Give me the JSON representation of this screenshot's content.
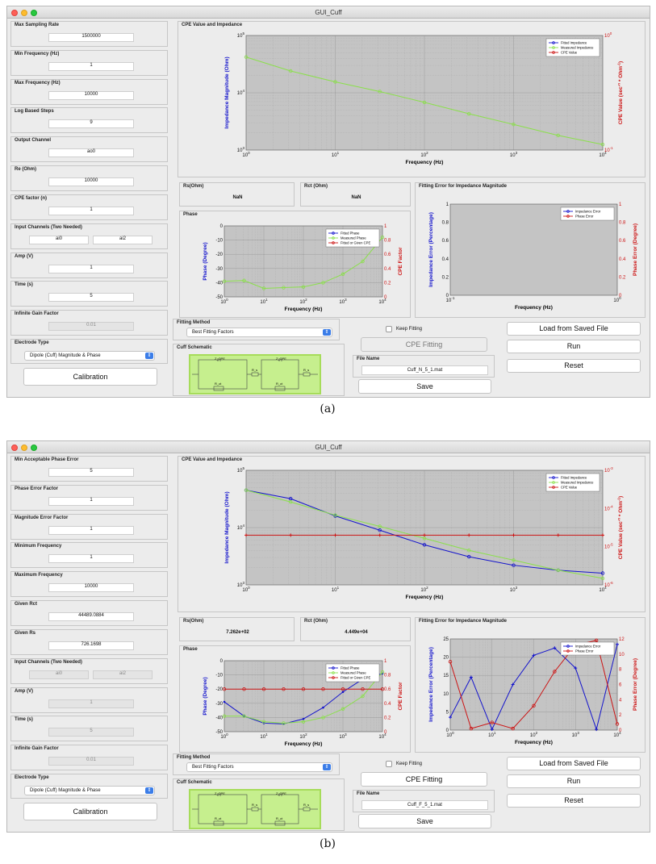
{
  "colors": {
    "blue": "#1414cc",
    "green": "#8be04b",
    "red": "#cc1414",
    "plot_bg": "#c4c4c4",
    "button_blue": "#3b7de8",
    "schematic_bg": "#c6ef8e"
  },
  "window_title": "GUI_Cuff",
  "captions": [
    "(a)",
    "(b)"
  ],
  "screens": [
    {
      "left_fields": [
        {
          "label": "Max Sampling Rate",
          "value": "1500000"
        },
        {
          "label": "Min Frequency (Hz)",
          "value": "1"
        },
        {
          "label": "Max Frequency (Hz)",
          "value": "10000"
        },
        {
          "label": "Log Based Steps",
          "value": "9"
        },
        {
          "label": "Output Channel",
          "value": "ao0"
        },
        {
          "label": "Re (Ohm)",
          "value": "10000"
        },
        {
          "label": "CPE factor (n)",
          "value": "1"
        }
      ],
      "input_channels": {
        "label": "Input Channels (Two Needed)",
        "ch1": "ai0",
        "ch2": "ai2",
        "disabled": false
      },
      "amp": {
        "label": "Amp (V)",
        "value": "1",
        "disabled": false
      },
      "time": {
        "label": "Time (s)",
        "value": "5",
        "disabled": false
      },
      "infinite_gain": {
        "label": "Infinite Gain Factor",
        "value": "0.01"
      },
      "electrode_type": {
        "label": "Electrode Type",
        "value": "Dipole (Cuff) Magnitude & Phase"
      },
      "calibration_label": "Calibration",
      "cpe_panel_title": "CPE Value and Impedance",
      "rs": {
        "label": "Rs(Ohm)",
        "value": "NaN"
      },
      "rct": {
        "label": "Rct (Ohm)",
        "value": "NaN"
      },
      "phase_panel_title": "Phase",
      "error_panel_title": "Fitting Error for Impedance Magnitude",
      "fitting_method": {
        "label": "Fitting Method",
        "value": "Best Fitting Factors"
      },
      "keep_fitting_label": "Keep Fitting",
      "cpe_fitting_label": "CPE Fitting",
      "cpe_fitting_enabled": false,
      "cuff_schematic_label": "Cuff Schematic",
      "schematic": {
        "cpe1": "Z_CPE",
        "rs1": "R_s",
        "rct1": "R_ct",
        "cpe2": "Z_CPE",
        "rs2": "R_s",
        "rct2": "R_ct"
      },
      "file_name": {
        "label": "File Name",
        "value": "Cuff_N_5_1.mat"
      },
      "load_label": "Load from Saved File",
      "run_label": "Run",
      "reset_label": "Reset",
      "save_label": "Save"
    },
    {
      "left_fields": [
        {
          "label": "Min Acceptable Phase Error",
          "value": "5"
        },
        {
          "label": "Phase Error Factor",
          "value": "1"
        },
        {
          "label": "Magnitude Error Factor",
          "value": "1"
        },
        {
          "label": "Minimum Frequency",
          "value": "1"
        },
        {
          "label": "Maximum Frequency",
          "value": "10000"
        },
        {
          "label": "Given Rct",
          "value": "44489.0884"
        },
        {
          "label": "Given Rs",
          "value": "726.1698"
        }
      ],
      "input_channels": {
        "label": "Input Channels (Two Needed)",
        "ch1": "ai0",
        "ch2": "ai2",
        "disabled": true
      },
      "amp": {
        "label": "Amp (V)",
        "value": "1",
        "disabled": true
      },
      "time": {
        "label": "Time (s)",
        "value": "5",
        "disabled": true
      },
      "infinite_gain": {
        "label": "Infinite Gain Factor",
        "value": "0.01"
      },
      "electrode_type": {
        "label": "Electrode Type",
        "value": "Dipole (Cuff) Magnitude & Phase"
      },
      "calibration_label": "Calibration",
      "cpe_panel_title": "CPE Value and Impedance",
      "rs": {
        "label": "Rs(Ohm)",
        "value": "7.262e+02"
      },
      "rct": {
        "label": "Rct (Ohm)",
        "value": "4.449e+04"
      },
      "phase_panel_title": "Phase",
      "error_panel_title": "Fitting Error for Impedance Magnitude",
      "fitting_method": {
        "label": "Fitting Method",
        "value": "Best Fitting Factors"
      },
      "keep_fitting_label": "Keep Fitting",
      "cpe_fitting_label": "CPE Fitting",
      "cpe_fitting_enabled": true,
      "cuff_schematic_label": "Cuff Schematic",
      "schematic": {
        "cpe1": "Z_CPE",
        "rs1": "R_s",
        "rct1": "R_ct",
        "cpe2": "Z_CPE",
        "rs2": "R_s",
        "rct2": "R_ct"
      },
      "file_name": {
        "label": "File Name",
        "value": "Cuff_F_5_1.mat"
      },
      "load_label": "Load from Saved File",
      "run_label": "Run",
      "reset_label": "Reset",
      "save_label": "Save"
    }
  ],
  "chart_data": [
    {
      "id": "a-impedance",
      "type": "line",
      "xlabel": "Frequency (Hz)",
      "ylabel": "Impedance Magnitude (Ohm)",
      "y2label": "CPE Value (sec^-n * Ohm^-1)",
      "xscale": "log",
      "yscale": "log",
      "xlim": [
        1,
        10000
      ],
      "ylim": [
        1000,
        100000
      ],
      "y2lim": [
        0.1,
        1
      ],
      "xticks": [
        "10^0",
        "10^1",
        "10^2",
        "10^3",
        "10^4"
      ],
      "yticks": [
        "10^3",
        "10^4",
        "10^5"
      ],
      "y2ticks": [
        "10^-1",
        "10^0"
      ],
      "legend": [
        "Fitted Impedance",
        "Measured Impedance",
        "CPE Value"
      ],
      "legend_position": "top-right",
      "grid": true,
      "series": [
        {
          "name": "Measured Impedance",
          "axis": "y",
          "x": [
            1,
            3.16,
            10,
            31.6,
            100,
            316,
            1000,
            3162,
            10000
          ],
          "y": [
            42000,
            24000,
            15500,
            10500,
            6800,
            4300,
            2800,
            1800,
            1250
          ]
        }
      ]
    },
    {
      "id": "a-phase",
      "type": "line",
      "xlabel": "Frequency (Hz)",
      "ylabel": "Phase (Degree)",
      "y2label": "CPE Factor",
      "xscale": "log",
      "yscale": "linear",
      "xlim": [
        1,
        10000
      ],
      "ylim": [
        -50,
        0
      ],
      "y2lim": [
        0,
        1
      ],
      "xticks": [
        "10^0",
        "10^1",
        "10^2",
        "10^3",
        "10^4"
      ],
      "yticks": [
        "0",
        "-10",
        "-20",
        "-30",
        "-40",
        "-50"
      ],
      "y2ticks": [
        "0",
        "0.2",
        "0.4",
        "0.6",
        "0.8",
        "1"
      ],
      "legend": [
        "Fitted Phase",
        "Measured Phase",
        "Fitted or Given CPE"
      ],
      "legend_position": "top-right",
      "grid": true,
      "series": [
        {
          "name": "Measured Phase",
          "axis": "y",
          "x": [
            1,
            3.16,
            10,
            31.6,
            100,
            316,
            1000,
            3162,
            10000
          ],
          "y": [
            -39,
            -38.5,
            -44,
            -43.5,
            -43,
            -40,
            -34,
            -25,
            -8
          ]
        }
      ]
    },
    {
      "id": "a-error",
      "type": "line",
      "xlabel": "Frequency (Hz)",
      "ylabel": "Impedance Error (Percentage)",
      "y2label": "Phase Error (Degree)",
      "xscale": "log",
      "yscale": "linear",
      "xlim": [
        0.1,
        1
      ],
      "ylim": [
        0,
        1
      ],
      "y2lim": [
        0,
        1
      ],
      "xticks": [
        "10^-1",
        "10^0"
      ],
      "yticks": [
        "0",
        "0.2",
        "0.4",
        "0.6",
        "0.8",
        "1"
      ],
      "y2ticks": [
        "0",
        "0.2",
        "0.4",
        "0.6",
        "0.8",
        "1"
      ],
      "legend": [
        "Impedance Error",
        "Phase Error"
      ],
      "legend_position": "top-right",
      "grid": false,
      "series": []
    },
    {
      "id": "b-impedance",
      "type": "line",
      "xlabel": "Frequency (Hz)",
      "ylabel": "Impedance Magnitude (Ohm)",
      "y2label": "CPE Value (sec^-n * Ohm^-1)",
      "xscale": "log",
      "yscale": "log",
      "xlim": [
        1,
        10000
      ],
      "ylim": [
        1000,
        100000
      ],
      "y2lim": [
        1e-06,
        0.001
      ],
      "xticks": [
        "10^0",
        "10^1",
        "10^2",
        "10^3",
        "10^4"
      ],
      "yticks": [
        "10^3",
        "10^4",
        "10^5"
      ],
      "y2ticks": [
        "10^-6",
        "10^-5",
        "10^-4",
        "10^-3"
      ],
      "legend": [
        "Fitted Impedance",
        "Measured Impedance",
        "CPE Value"
      ],
      "legend_position": "top-right",
      "grid": true,
      "series": [
        {
          "name": "Fitted Impedance",
          "axis": "y",
          "x": [
            1,
            3.16,
            10,
            31.6,
            100,
            316,
            1000,
            3162,
            10000
          ],
          "y": [
            45000,
            32000,
            16000,
            9000,
            5000,
            3100,
            2200,
            1800,
            1600
          ]
        },
        {
          "name": "Measured Impedance",
          "axis": "y",
          "x": [
            1,
            3.16,
            10,
            31.6,
            100,
            316,
            1000,
            3162,
            10000
          ],
          "y": [
            45000,
            28000,
            16500,
            10500,
            6500,
            4000,
            2700,
            1800,
            1300
          ]
        },
        {
          "name": "CPE Value",
          "axis": "y2",
          "x": [
            1,
            3.16,
            10,
            31.6,
            100,
            316,
            1000,
            3162,
            10000
          ],
          "y": [
            2e-05,
            2e-05,
            2e-05,
            2e-05,
            2e-05,
            2e-05,
            2e-05,
            2e-05,
            2e-05
          ]
        }
      ]
    },
    {
      "id": "b-phase",
      "type": "line",
      "xlabel": "Frequency (Hz)",
      "ylabel": "Phase (Degree)",
      "y2label": "CPE Factor",
      "xscale": "log",
      "yscale": "linear",
      "xlim": [
        1,
        10000
      ],
      "ylim": [
        -50,
        0
      ],
      "y2lim": [
        0,
        1
      ],
      "xticks": [
        "10^0",
        "10^1",
        "10^2",
        "10^3",
        "10^4"
      ],
      "yticks": [
        "0",
        "-10",
        "-20",
        "-30",
        "-40",
        "-50"
      ],
      "y2ticks": [
        "0",
        "0.2",
        "0.4",
        "0.6",
        "0.8",
        "1"
      ],
      "legend": [
        "Fitted Phase",
        "Measured Phase",
        "Fitted or Given CPE"
      ],
      "legend_position": "top-right",
      "grid": true,
      "series": [
        {
          "name": "Fitted Phase",
          "axis": "y",
          "x": [
            1,
            3.16,
            10,
            31.6,
            100,
            316,
            1000,
            3162,
            10000
          ],
          "y": [
            -29,
            -39,
            -44,
            -44.5,
            -41,
            -33,
            -22,
            -13,
            -9
          ]
        },
        {
          "name": "Measured Phase",
          "axis": "y",
          "x": [
            1,
            3.16,
            10,
            31.6,
            100,
            316,
            1000,
            3162,
            10000
          ],
          "y": [
            -39,
            -39,
            -43,
            -44,
            -43,
            -40,
            -34,
            -25,
            -8
          ]
        },
        {
          "name": "Fitted or Given CPE",
          "axis": "y2",
          "x": [
            1,
            3.16,
            10,
            31.6,
            100,
            316,
            1000,
            3162,
            10000
          ],
          "y": [
            0.6,
            0.6,
            0.6,
            0.6,
            0.6,
            0.6,
            0.6,
            0.6,
            0.6
          ]
        }
      ]
    },
    {
      "id": "b-error",
      "type": "line",
      "xlabel": "Frequency (Hz)",
      "ylabel": "Impedance Error (Percentage)",
      "y2label": "Phase Error (Degree)",
      "xscale": "log",
      "yscale": "linear",
      "xlim": [
        1,
        10000
      ],
      "ylim": [
        0,
        25
      ],
      "y2lim": [
        0,
        12
      ],
      "xticks": [
        "10^0",
        "10^1",
        "10^2",
        "10^3",
        "10^4"
      ],
      "yticks": [
        "0",
        "5",
        "10",
        "15",
        "20",
        "25"
      ],
      "y2ticks": [
        "0",
        "2",
        "4",
        "6",
        "8",
        "10",
        "12"
      ],
      "legend": [
        "Impedance Error",
        "Phase Error"
      ],
      "legend_position": "top-right",
      "grid": true,
      "series": [
        {
          "name": "Impedance Error",
          "axis": "y",
          "x": [
            1,
            3.16,
            10,
            31.6,
            100,
            316,
            1000,
            3162,
            10000
          ],
          "y": [
            3.5,
            14.5,
            0.2,
            12.5,
            20.5,
            22.5,
            17,
            0.2,
            23.5
          ]
        },
        {
          "name": "Phase Error",
          "axis": "y2",
          "x": [
            1,
            3.16,
            10,
            31.6,
            100,
            316,
            1000,
            3162,
            10000
          ],
          "y": [
            9,
            0.2,
            1,
            0.2,
            3.2,
            7.7,
            11.2,
            11.8,
            0.8
          ]
        }
      ]
    }
  ]
}
